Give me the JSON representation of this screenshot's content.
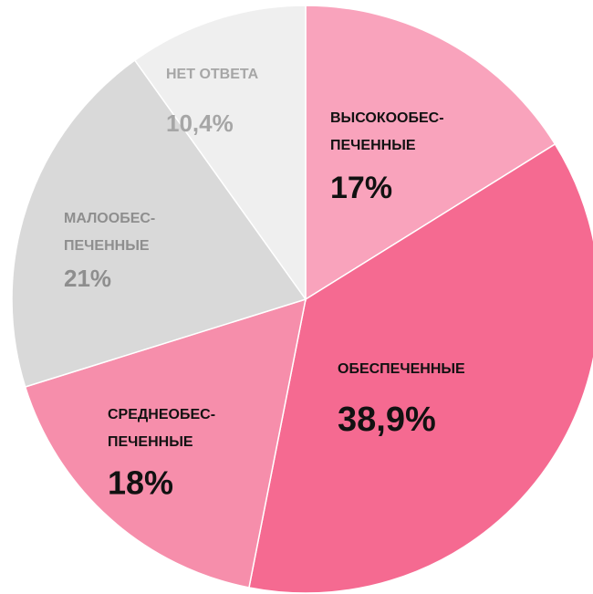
{
  "chart_data": {
    "type": "pie",
    "categories": [
      "ВЫСОКООБЕС-\nПЕЧЕННЫЕ",
      "ОБЕСПЕЧЕННЫЕ",
      "СРЕДНЕОБЕС-\nПЕЧЕННЫЕ",
      "МАЛООБЕС-\nПЕЧЕННЫЕ",
      "НЕТ ОТВЕТА"
    ],
    "values": [
      17,
      38.9,
      18,
      21,
      10.4
    ],
    "value_labels": [
      "17%",
      "38,9%",
      "18%",
      "21%",
      "10,4%"
    ],
    "colors": [
      "#f9a3bc",
      "#f56a91",
      "#f68eab",
      "#d9d9d9",
      "#efefef"
    ],
    "label_colors": [
      "#111111",
      "#111111",
      "#111111",
      "#8e8e8e",
      "#a6a6a6"
    ]
  }
}
